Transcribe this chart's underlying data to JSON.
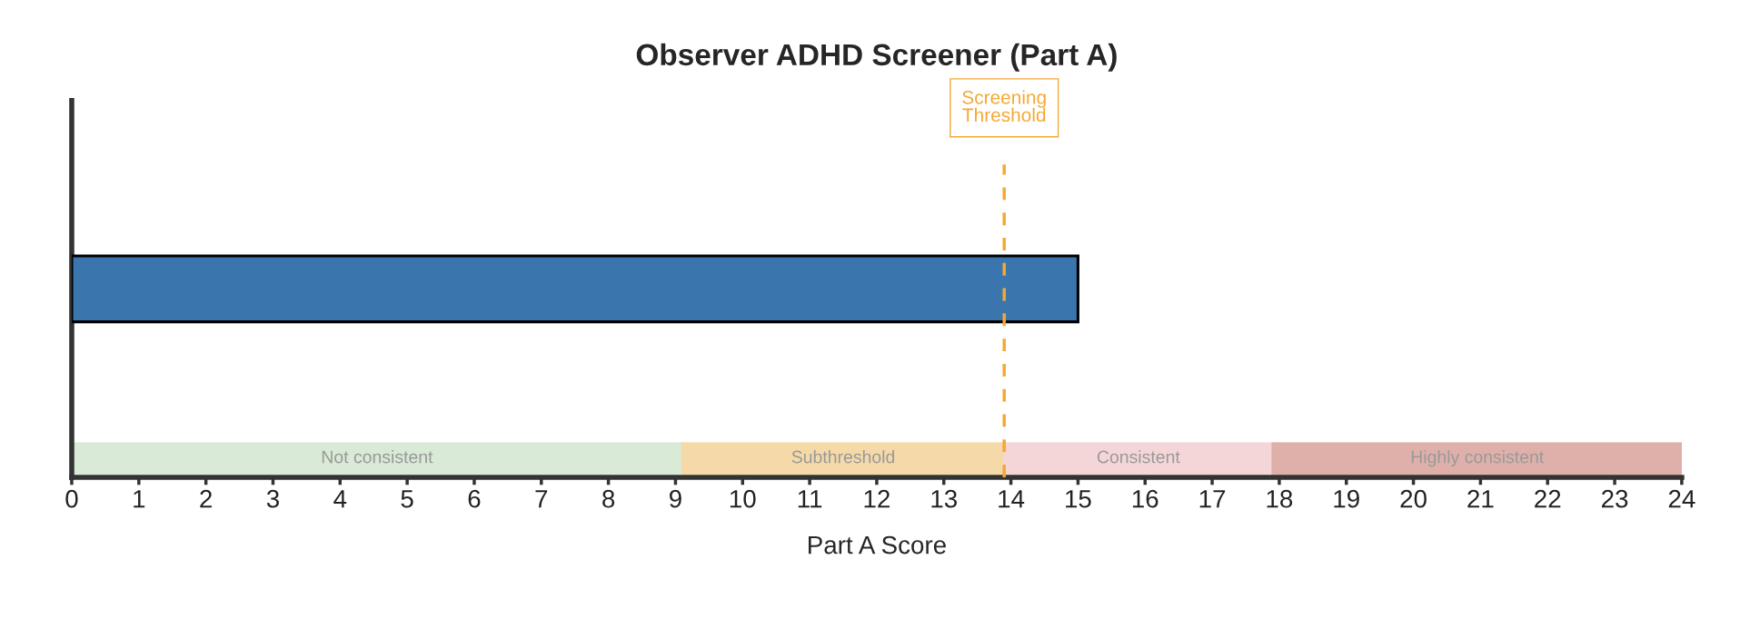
{
  "chart_data": {
    "type": "bar",
    "orientation": "horizontal",
    "title": "Observer ADHD Screener (Part A)",
    "xlabel": "Part A Score",
    "categories": [
      null
    ],
    "values": [
      15
    ],
    "color": "#3a75ae",
    "xlim": [
      0,
      24
    ],
    "xticks": [
      0,
      1,
      2,
      3,
      4,
      5,
      6,
      7,
      8,
      9,
      10,
      11,
      12,
      13,
      14,
      15,
      16,
      17,
      18,
      19,
      20,
      21,
      22,
      23,
      24
    ],
    "grid": false,
    "legend": false,
    "ref_lines": [
      {
        "axis": "x",
        "value": 13.9,
        "label": "Screening\nThreshold",
        "color": "#f5a833",
        "line_style": "dashed"
      }
    ],
    "bands": [
      {
        "axis": "x",
        "from": 0,
        "to": 9.1,
        "label": "Not consistent",
        "color": "#d9ead6"
      },
      {
        "axis": "x",
        "from": 9.1,
        "to": 13.9,
        "label": "Subthreshold",
        "color": "#f5d9a8"
      },
      {
        "axis": "x",
        "from": 13.9,
        "to": 17.9,
        "label": "Consistent",
        "color": "#f5d6d8"
      },
      {
        "axis": "x",
        "from": 17.9,
        "to": 24,
        "label": "Highly consistent",
        "color": "#dfb0aa"
      }
    ]
  }
}
